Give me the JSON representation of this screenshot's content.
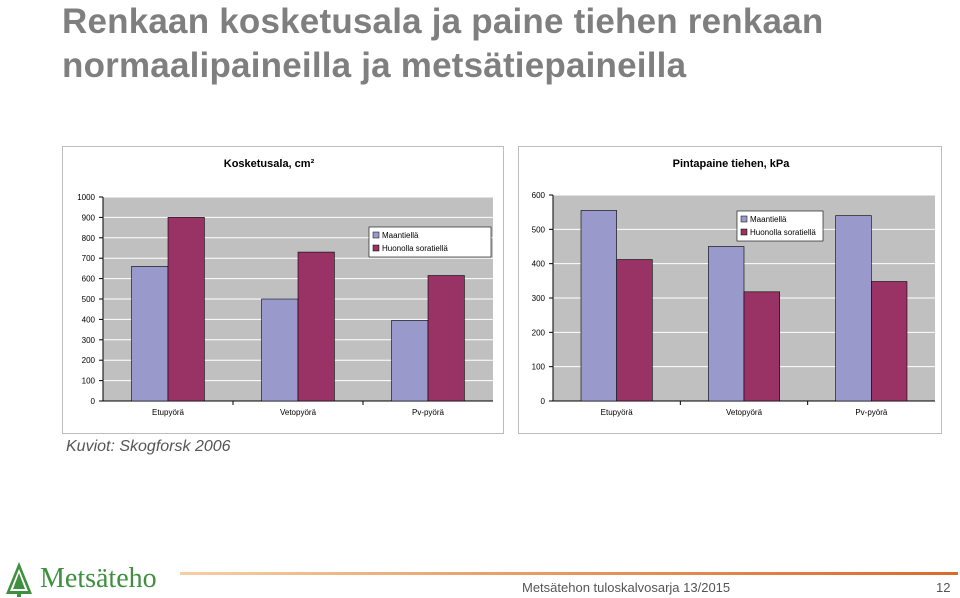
{
  "slide": {
    "title_line1": "Renkaan kosketusala ja paine tiehen renkaan",
    "title_line2": "normaalipaineilla ja metsätiepaineilla",
    "source": "Kuviot: Skogforsk 2006",
    "logo_text": "Metsäteho",
    "footer": "Metsätehon tuloskalvosarja 13/2015",
    "page_number": "12"
  },
  "colors": {
    "series1": "#9999cc",
    "series2": "#993366",
    "plot_bg": "#c0c0c0",
    "logo_green": "#3e8f3e"
  },
  "chart_data": [
    {
      "type": "bar",
      "title": "Kosketusala, cm²",
      "categories": [
        "Etupyörä",
        "Vetopyörä",
        "Pv-pyörä"
      ],
      "series": [
        {
          "name": "Maantiellä",
          "values": [
            660,
            500,
            395
          ]
        },
        {
          "name": "Huonolla soratiellä",
          "values": [
            900,
            730,
            615
          ]
        }
      ],
      "ylim": [
        0,
        1000
      ],
      "yticks": [
        0,
        100,
        200,
        300,
        400,
        500,
        600,
        700,
        800,
        900,
        1000
      ],
      "grid": true,
      "legend": "top-right"
    },
    {
      "type": "bar",
      "title": "Pintapaine tiehen, kPa",
      "categories": [
        "Etupyörä",
        "Vetopyörä",
        "Pv-pyörä"
      ],
      "series": [
        {
          "name": "Maantiellä",
          "values": [
            555,
            450,
            540
          ]
        },
        {
          "name": "Huonolla soratiellä",
          "values": [
            412,
            318,
            348
          ]
        }
      ],
      "ylim": [
        0,
        600
      ],
      "yticks": [
        0,
        100,
        200,
        300,
        400,
        500,
        600
      ],
      "grid": true,
      "legend": "top-right"
    }
  ]
}
